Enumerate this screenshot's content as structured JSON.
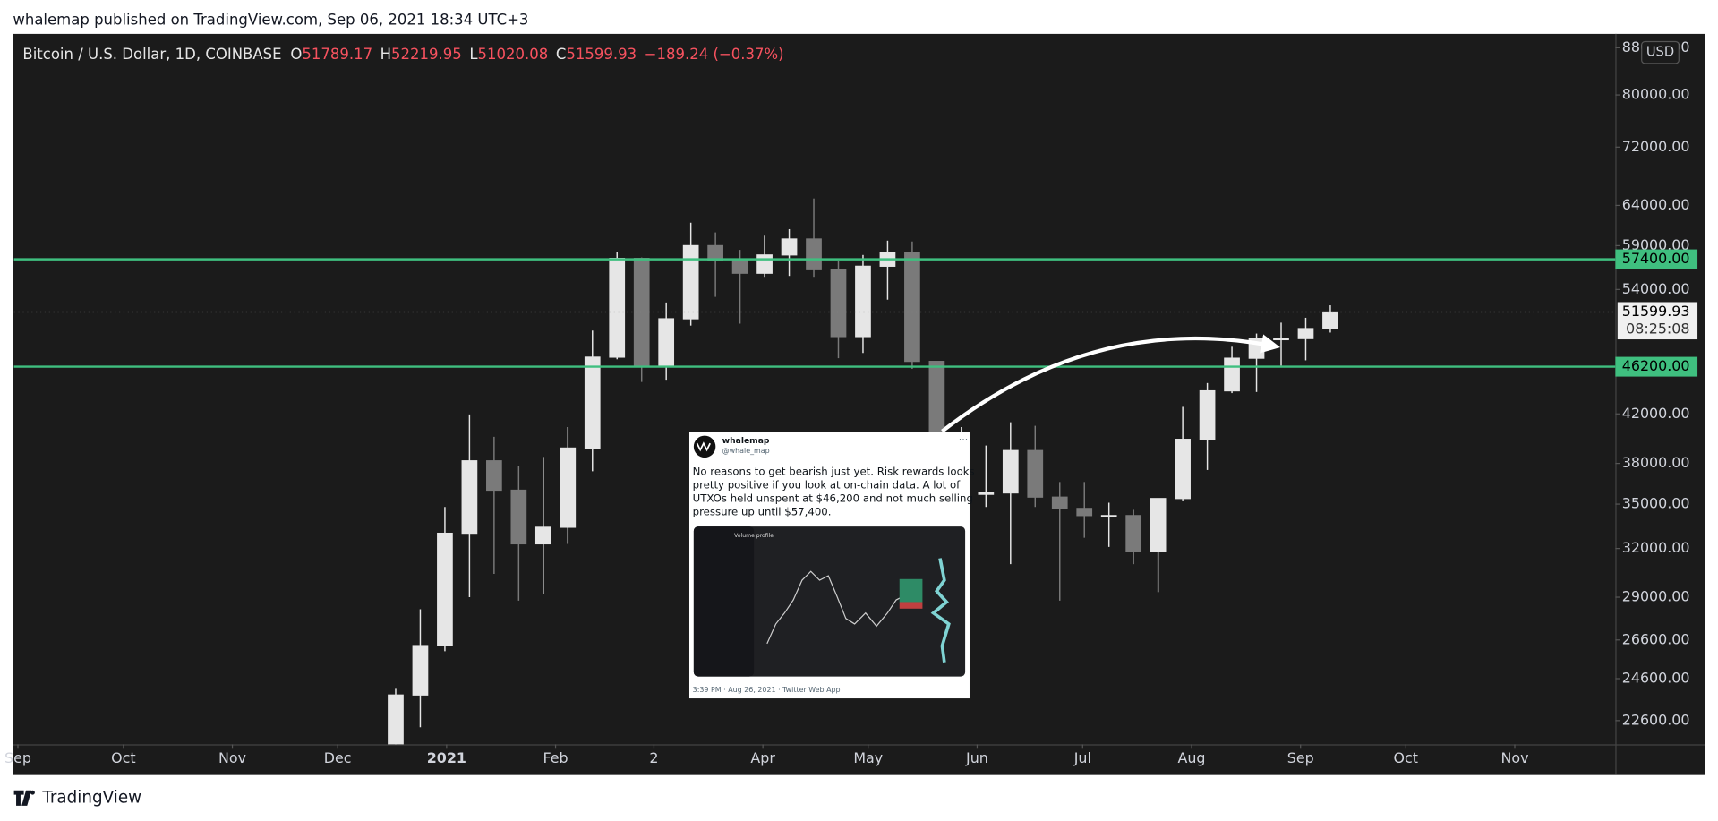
{
  "header": {
    "published": "whalemap published on TradingView.com, Sep 06, 2021 18:34 UTC+3"
  },
  "footer": {
    "brand": "TradingView"
  },
  "chart_data": {
    "type": "candlestick",
    "symbol": "Bitcoin / U.S. Dollar, 1D, COINBASE",
    "ohlc_legend": [
      {
        "key": "O",
        "value": "51789.17"
      },
      {
        "key": "H",
        "value": "52219.95"
      },
      {
        "key": "L",
        "value": "51020.08"
      },
      {
        "key": "C",
        "value": "51599.93"
      }
    ],
    "change": "−189.24 (−0.37%)",
    "currency": "USD",
    "log_scale": true,
    "grid": false,
    "up_color": "#e6e6e6",
    "down_color": "#7a7a7a",
    "categories": [
      null,
      null,
      null,
      null,
      null,
      null,
      null,
      null,
      null,
      null,
      null,
      null,
      null,
      null,
      null,
      null,
      null,
      null,
      null,
      null,
      null,
      null,
      null,
      null,
      null,
      null,
      null,
      null,
      null,
      null,
      null,
      null,
      null,
      null,
      null,
      null,
      null,
      null,
      null
    ],
    "open": [
      19150,
      23800,
      26300,
      33000,
      38200,
      36000,
      32300,
      33400,
      39200,
      47100,
      57500,
      46200,
      50900,
      59000,
      57300,
      55800,
      57900,
      59800,
      56200,
      49100,
      56600,
      58200,
      46700,
      34700,
      35700,
      35800,
      39000,
      35500,
      34700,
      34200,
      34200,
      31800,
      35400,
      39900,
      44000,
      47000,
      48900,
      48900,
      49900
    ],
    "high": [
      24100,
      28300,
      34800,
      41950,
      40100,
      37800,
      38500,
      40900,
      49700,
      58300,
      57600,
      52600,
      61800,
      60600,
      58500,
      60200,
      61000,
      64900,
      57200,
      57900,
      59600,
      59500,
      46700,
      40900,
      39400,
      41300,
      41000,
      36600,
      36600,
      35100,
      34600,
      35400,
      42600,
      44700,
      48100,
      49400,
      50500,
      51000,
      52300
    ],
    "low": [
      19000,
      22300,
      26000,
      29000,
      30400,
      28800,
      29200,
      32300,
      37400,
      46900,
      44800,
      45000,
      50200,
      53200,
      50400,
      55400,
      55500,
      55400,
      47000,
      47500,
      52900,
      46000,
      30000,
      31100,
      34800,
      31000,
      34800,
      28800,
      32700,
      32100,
      31000,
      29300,
      35200,
      37500,
      43800,
      43900,
      46300,
      46800,
      49500
    ],
    "close": [
      23800,
      26300,
      33000,
      38200,
      36000,
      32300,
      33400,
      39200,
      47100,
      57500,
      46200,
      50900,
      59000,
      57300,
      55800,
      57900,
      59800,
      56200,
      49100,
      56600,
      58200,
      46700,
      34700,
      35700,
      35800,
      39000,
      35500,
      34700,
      34200,
      34200,
      31800,
      35400,
      39900,
      44000,
      47000,
      48900,
      48900,
      49900,
      51600
    ],
    "xlim": [
      -15.02,
      50.09
    ],
    "xticks": [
      {
        "value": -14.86,
        "label": "Sep"
      },
      {
        "value": -10.57,
        "label": "Oct"
      },
      {
        "value": -6.14,
        "label": "Nov"
      },
      {
        "value": -1.86,
        "label": "Dec"
      },
      {
        "value": 2.57,
        "label": "2021"
      },
      {
        "value": 7,
        "label": "Feb"
      },
      {
        "value": 11,
        "label": "2"
      },
      {
        "value": 15.43,
        "label": "Apr"
      },
      {
        "value": 19.71,
        "label": "May"
      },
      {
        "value": 24.14,
        "label": "Jun"
      },
      {
        "value": 28.43,
        "label": "Jul"
      },
      {
        "value": 32.86,
        "label": "Aug"
      },
      {
        "value": 37.29,
        "label": "Sep"
      },
      {
        "value": 41.57,
        "label": "Oct"
      },
      {
        "value": 46,
        "label": "Nov"
      }
    ],
    "ylim": [
      21540,
      90300
    ],
    "yticks": [
      {
        "value": 88000,
        "label": "88000.00"
      },
      {
        "value": 80000,
        "label": "80000.00"
      },
      {
        "value": 72000,
        "label": "72000.00"
      },
      {
        "value": 64000,
        "label": "64000.00"
      },
      {
        "value": 59000,
        "label": "59000.00"
      },
      {
        "value": 54000,
        "label": "54000.00"
      },
      {
        "value": 42000,
        "label": "42000.00"
      },
      {
        "value": 38000,
        "label": "38000.00"
      },
      {
        "value": 35000,
        "label": "35000.00"
      },
      {
        "value": 32000,
        "label": "32000.00"
      },
      {
        "value": 29000,
        "label": "29000.00"
      },
      {
        "value": 26600,
        "label": "26600.00"
      },
      {
        "value": 24600,
        "label": "24600.00"
      },
      {
        "value": 22600,
        "label": "22600.00"
      }
    ],
    "hlines": [
      {
        "value": 57400,
        "label": "57400.00",
        "color": "#3fbf7f"
      },
      {
        "value": 46200,
        "label": "46200.00",
        "color": "#3fbf7f"
      }
    ],
    "last_price": {
      "value": 51599.93,
      "label": "51599.93",
      "countdown": "08:25:08"
    }
  },
  "tweet": {
    "name": "whalemap",
    "handle": "@whale_map",
    "text_lines": [
      "No reasons to get bearish just yet. Risk rewards looks",
      "pretty positive if you look at on-chain data. A lot of",
      "UTXOs held unspent at $46,200 and not much selling",
      "pressure up until $57,400."
    ],
    "inner_title": "Volume profile",
    "footer": "3:39 PM · Aug 26, 2021 · Twitter Web App"
  }
}
